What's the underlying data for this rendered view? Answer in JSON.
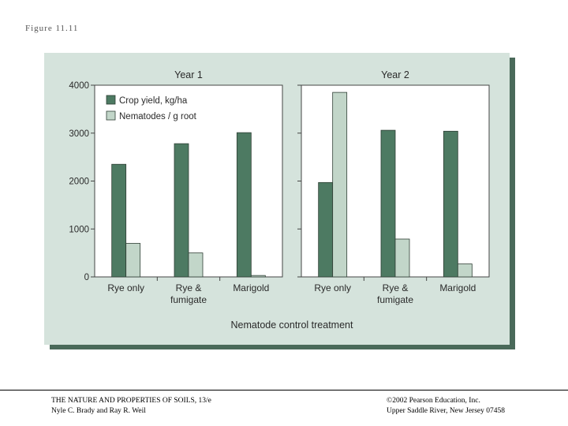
{
  "figure_label": "Figure 11.11",
  "colors": {
    "crop": "#4d7a62",
    "nematode": "#c2d6c9",
    "panel": "#d5e3dc",
    "shadow": "#4a6a5a"
  },
  "chart_data": [
    {
      "type": "bar",
      "title": "Year 1",
      "categories": [
        [
          "Rye only"
        ],
        [
          "Rye &",
          "fumigate"
        ],
        [
          "Marigold"
        ]
      ],
      "series": [
        {
          "name": "Crop yield, kg/ha",
          "values": [
            2350,
            2780,
            3010
          ]
        },
        {
          "name": "Nematodes / g root",
          "values": [
            700,
            500,
            30
          ]
        }
      ],
      "ylim": [
        0,
        4000
      ],
      "yticks": [
        0,
        1000,
        2000,
        3000,
        4000
      ],
      "legend": "top-left"
    },
    {
      "type": "bar",
      "title": "Year 2",
      "categories": [
        [
          "Rye only"
        ],
        [
          "Rye &",
          "fumigate"
        ],
        [
          "Marigold"
        ]
      ],
      "series": [
        {
          "name": "Crop yield, kg/ha",
          "values": [
            1970,
            3060,
            3040
          ]
        },
        {
          "name": "Nematodes / g root",
          "values": [
            3850,
            790,
            270
          ]
        }
      ],
      "ylim": [
        0,
        4000
      ],
      "yticks": [
        0,
        1000,
        2000,
        3000,
        4000
      ]
    }
  ],
  "xlabel": "Nematode control treatment",
  "footer": {
    "left_line1": "THE NATURE AND PROPERTIES OF SOILS, 13/e",
    "left_line2": "Nyle C. Brady and Ray R. Weil",
    "right_line1": "©2002 Pearson Education, Inc.",
    "right_line2": "Upper Saddle River, New Jersey 07458"
  }
}
